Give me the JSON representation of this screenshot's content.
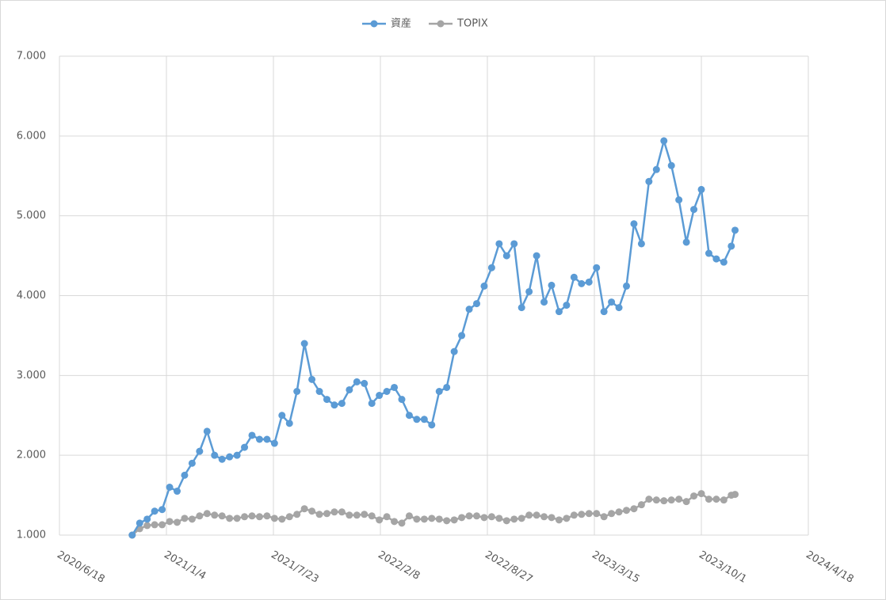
{
  "chart_data": {
    "type": "line",
    "x": [
      "2020/11/1",
      "2020/11/15",
      "2020/11/29",
      "2020/12/13",
      "2020/12/27",
      "2021/1/10",
      "2021/1/24",
      "2021/2/7",
      "2021/2/21",
      "2021/3/7",
      "2021/3/21",
      "2021/4/4",
      "2021/4/18",
      "2021/5/2",
      "2021/5/16",
      "2021/5/30",
      "2021/6/13",
      "2021/6/27",
      "2021/7/11",
      "2021/7/25",
      "2021/8/8",
      "2021/8/22",
      "2021/9/5",
      "2021/9/19",
      "2021/10/3",
      "2021/10/17",
      "2021/10/31",
      "2021/11/14",
      "2021/11/28",
      "2021/12/12",
      "2021/12/26",
      "2022/1/9",
      "2022/1/23",
      "2022/2/6",
      "2022/2/20",
      "2022/3/6",
      "2022/3/20",
      "2022/4/3",
      "2022/4/17",
      "2022/5/1",
      "2022/5/15",
      "2022/5/29",
      "2022/6/12",
      "2022/6/26",
      "2022/7/10",
      "2022/7/24",
      "2022/8/7",
      "2022/8/21",
      "2022/9/4",
      "2022/9/18",
      "2022/10/2",
      "2022/10/16",
      "2022/10/30",
      "2022/11/13",
      "2022/11/27",
      "2022/12/11",
      "2022/12/25",
      "2023/1/8",
      "2023/1/22",
      "2023/2/5",
      "2023/2/19",
      "2023/3/5",
      "2023/3/19",
      "2023/4/2",
      "2023/4/16",
      "2023/4/30",
      "2023/5/14",
      "2023/5/28",
      "2023/6/11",
      "2023/6/25",
      "2023/7/9",
      "2023/7/23",
      "2023/8/6",
      "2023/8/20",
      "2023/9/3",
      "2023/9/17",
      "2023/10/1",
      "2023/10/15",
      "2023/10/29",
      "2023/11/12",
      "2023/11/26",
      "2023/12/3"
    ],
    "series": [
      {
        "name": "資産",
        "color": "#5b9bd5",
        "values": [
          1.0,
          1.15,
          1.2,
          1.3,
          1.32,
          1.6,
          1.55,
          1.75,
          1.9,
          2.05,
          2.3,
          2.0,
          1.95,
          1.98,
          2.0,
          2.1,
          2.25,
          2.2,
          2.2,
          2.15,
          2.5,
          2.4,
          2.8,
          3.4,
          2.95,
          2.8,
          2.7,
          2.63,
          2.65,
          2.82,
          2.92,
          2.9,
          2.65,
          2.75,
          2.8,
          2.85,
          2.7,
          2.5,
          2.45,
          2.45,
          2.38,
          2.8,
          2.85,
          3.3,
          3.5,
          3.83,
          3.9,
          4.12,
          4.35,
          4.65,
          4.5,
          4.65,
          3.85,
          4.05,
          4.5,
          3.92,
          4.13,
          3.8,
          3.88,
          4.23,
          4.15,
          4.17,
          4.35,
          3.8,
          3.92,
          3.85,
          4.12,
          4.9,
          4.65,
          5.43,
          5.58,
          5.94,
          5.63,
          5.2,
          4.67,
          5.08,
          5.33,
          4.53,
          4.46,
          4.42,
          4.62,
          4.82
        ]
      },
      {
        "name": "TOPIX",
        "color": "#a5a5a5",
        "values": [
          1.0,
          1.08,
          1.12,
          1.13,
          1.13,
          1.17,
          1.16,
          1.21,
          1.2,
          1.24,
          1.27,
          1.25,
          1.24,
          1.21,
          1.21,
          1.23,
          1.24,
          1.23,
          1.24,
          1.21,
          1.2,
          1.23,
          1.26,
          1.33,
          1.3,
          1.26,
          1.27,
          1.29,
          1.29,
          1.25,
          1.25,
          1.26,
          1.24,
          1.19,
          1.23,
          1.17,
          1.15,
          1.24,
          1.2,
          1.2,
          1.21,
          1.2,
          1.18,
          1.19,
          1.22,
          1.24,
          1.24,
          1.22,
          1.23,
          1.21,
          1.18,
          1.2,
          1.21,
          1.25,
          1.25,
          1.23,
          1.22,
          1.19,
          1.21,
          1.25,
          1.26,
          1.27,
          1.27,
          1.23,
          1.27,
          1.29,
          1.31,
          1.33,
          1.38,
          1.45,
          1.44,
          1.43,
          1.44,
          1.45,
          1.42,
          1.49,
          1.52,
          1.45,
          1.45,
          1.44,
          1.5,
          1.51
        ]
      }
    ],
    "xlim": [
      "2020/6/18",
      "2024/4/18"
    ],
    "xticks": [
      "2020/6/18",
      "2021/1/4",
      "2021/7/23",
      "2022/2/8",
      "2022/8/27",
      "2023/3/15",
      "2023/10/1",
      "2024/4/18"
    ],
    "ylim": [
      1,
      7
    ],
    "yticks": [
      {
        "value": 1,
        "label": "1.000"
      },
      {
        "value": 2,
        "label": "2.000"
      },
      {
        "value": 3,
        "label": "3.000"
      },
      {
        "value": 4,
        "label": "4.000"
      },
      {
        "value": 5,
        "label": "5.000"
      },
      {
        "value": 6,
        "label": "6.000"
      },
      {
        "value": 7,
        "label": "7.000"
      }
    ],
    "grid": true,
    "legend": "top"
  }
}
